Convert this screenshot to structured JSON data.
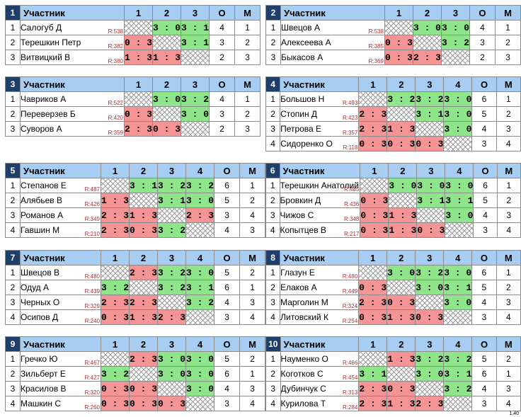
{
  "header": {
    "participant": "Участник",
    "o": "О",
    "m": "М"
  },
  "groups": [
    {
      "num": "1",
      "players": [
        {
          "pos": "1",
          "name": "Салогуб Д",
          "rating": "R:538",
          "scores": [
            "",
            "3 : 0",
            "3 : 1"
          ],
          "o": "4",
          "m": "1"
        },
        {
          "pos": "2",
          "name": "Терешкин Петр",
          "rating": "R:382",
          "scores": [
            "0 : 3",
            "",
            "3 : 1"
          ],
          "o": "3",
          "m": "2"
        },
        {
          "pos": "3",
          "name": "Витвицкий В",
          "rating": "R:380",
          "scores": [
            "1 : 3",
            "1 : 3",
            ""
          ],
          "o": "2",
          "m": "3"
        }
      ]
    },
    {
      "num": "2",
      "players": [
        {
          "pos": "1",
          "name": "Швецов А",
          "rating": "R:538",
          "scores": [
            "",
            "3 : 0",
            "3 : 0"
          ],
          "o": "4",
          "m": "1"
        },
        {
          "pos": "2",
          "name": "Алексеева А",
          "rating": "R:385",
          "scores": [
            "0 : 3",
            "",
            "3 : 2"
          ],
          "o": "3",
          "m": "2"
        },
        {
          "pos": "3",
          "name": "Быкасов А",
          "rating": "R:369",
          "scores": [
            "0 : 3",
            "2 : 3",
            ""
          ],
          "o": "2",
          "m": "3"
        }
      ]
    },
    {
      "num": "3",
      "players": [
        {
          "pos": "1",
          "name": "Чавриков А",
          "rating": "R:522",
          "scores": [
            "",
            "3 : 0",
            "3 : 2"
          ],
          "o": "4",
          "m": "1"
        },
        {
          "pos": "2",
          "name": "Переверзев Б",
          "rating": "R:420",
          "scores": [
            "0 : 3",
            "",
            "3 : 0"
          ],
          "o": "3",
          "m": "2"
        },
        {
          "pos": "3",
          "name": "Суворов А",
          "rating": "R:359",
          "scores": [
            "2 : 3",
            "0 : 3",
            ""
          ],
          "o": "2",
          "m": "3"
        }
      ]
    },
    {
      "num": "4",
      "players": [
        {
          "pos": "1",
          "name": "Большов Н",
          "rating": "R:493",
          "scores": [
            "",
            "3 : 2",
            "3 : 2",
            "3 : 0"
          ],
          "o": "6",
          "m": "1"
        },
        {
          "pos": "2",
          "name": "Стопин Д",
          "rating": "R:423",
          "scores": [
            "2 : 3",
            "",
            "3 : 1",
            "3 : 0"
          ],
          "o": "5",
          "m": "2"
        },
        {
          "pos": "3",
          "name": "Петрова Е",
          "rating": "R:357",
          "scores": [
            "2 : 3",
            "1 : 3",
            "",
            "3 : 0"
          ],
          "o": "4",
          "m": "3"
        },
        {
          "pos": "4",
          "name": "Сидоренко О",
          "rating": "R:118",
          "scores": [
            "0 : 3",
            "0 : 3",
            "0 : 3",
            ""
          ],
          "o": "3",
          "m": "4"
        }
      ]
    },
    {
      "num": "5",
      "players": [
        {
          "pos": "1",
          "name": "Степанов Е",
          "rating": "R:487",
          "scores": [
            "",
            "3 : 1",
            "3 : 2",
            "3 : 2"
          ],
          "o": "6",
          "m": "1"
        },
        {
          "pos": "2",
          "name": "Алябьев В",
          "rating": "R:426",
          "scores": [
            "1 : 3",
            "",
            "3 : 1",
            "3 : 0"
          ],
          "o": "5",
          "m": "2"
        },
        {
          "pos": "3",
          "name": "Романов А",
          "rating": "R:349",
          "scores": [
            "2 : 3",
            "1 : 3",
            "",
            "2 : 3"
          ],
          "o": "3",
          "m": "4"
        },
        {
          "pos": "4",
          "name": "Гавшин М",
          "rating": "R:210",
          "scores": [
            "2 : 3",
            "0 : 3",
            "3 : 2",
            ""
          ],
          "o": "4",
          "m": "3"
        }
      ]
    },
    {
      "num": "6",
      "players": [
        {
          "pos": "1",
          "name": "Терешкин Анатолий",
          "rating": "R:485",
          "scores": [
            "",
            "3 : 0",
            "3 : 0",
            "3 : 0"
          ],
          "o": "6",
          "m": "1"
        },
        {
          "pos": "2",
          "name": "Бровкин Д",
          "rating": "R:436",
          "scores": [
            "0 : 3",
            "",
            "3 : 1",
            "3 : 1"
          ],
          "o": "5",
          "m": "2"
        },
        {
          "pos": "3",
          "name": "Чижов С",
          "rating": "R:348",
          "scores": [
            "0 : 3",
            "1 : 3",
            "",
            "3 : 0"
          ],
          "o": "4",
          "m": "3"
        },
        {
          "pos": "4",
          "name": "Копытцев В",
          "rating": "R:217",
          "scores": [
            "0 : 3",
            "1 : 3",
            "0 : 3",
            ""
          ],
          "o": "3",
          "m": "4"
        }
      ]
    },
    {
      "num": "7",
      "players": [
        {
          "pos": "1",
          "name": "Швецов В",
          "rating": "R:480",
          "scores": [
            "",
            "2 : 3",
            "3 : 2",
            "3 : 0"
          ],
          "o": "5",
          "m": "2"
        },
        {
          "pos": "2",
          "name": "Одуд А",
          "rating": "R:439",
          "scores": [
            "3 : 2",
            "",
            "3 : 2",
            "3 : 1"
          ],
          "o": "6",
          "m": "1"
        },
        {
          "pos": "3",
          "name": "Черных О",
          "rating": "R:329",
          "scores": [
            "2 : 3",
            "2 : 3",
            "",
            "3 : 2"
          ],
          "o": "4",
          "m": "3"
        },
        {
          "pos": "4",
          "name": "Осипов Д",
          "rating": "R:240",
          "scores": [
            "0 : 3",
            "1 : 3",
            "2 : 3",
            ""
          ],
          "o": "3",
          "m": "4"
        }
      ]
    },
    {
      "num": "8",
      "players": [
        {
          "pos": "1",
          "name": "Глазун Е",
          "rating": "R:480",
          "scores": [
            "",
            "3 : 0",
            "3 : 2",
            "3 : 0"
          ],
          "o": "6",
          "m": "1"
        },
        {
          "pos": "2",
          "name": "Елаков А",
          "rating": "R:449",
          "scores": [
            "0 : 3",
            "",
            "3 : 0",
            "3 : 1"
          ],
          "o": "5",
          "m": "2"
        },
        {
          "pos": "3",
          "name": "Марголин М",
          "rating": "R:324",
          "scores": [
            "2 : 3",
            "0 : 3",
            "",
            "3 : 0"
          ],
          "o": "4",
          "m": "3"
        },
        {
          "pos": "4",
          "name": "Литовский К",
          "rating": "R:254",
          "scores": [
            "0 : 3",
            "1 : 3",
            "0 : 3",
            ""
          ],
          "o": "3",
          "m": "4"
        }
      ]
    },
    {
      "num": "9",
      "players": [
        {
          "pos": "1",
          "name": "Гречко Ю",
          "rating": "R:467",
          "scores": [
            "",
            "2 : 3",
            "3 : 0",
            "3 : 0"
          ],
          "o": "5",
          "m": "2"
        },
        {
          "pos": "2",
          "name": "Зильберт Е",
          "rating": "R:427",
          "scores": [
            "3 : 2",
            "",
            "3 : 0",
            "3 : 0"
          ],
          "o": "6",
          "m": "1"
        },
        {
          "pos": "3",
          "name": "Красилов В",
          "rating": "R:320",
          "scores": [
            "0 : 3",
            "0 : 3",
            "",
            "3 : 0"
          ],
          "o": "4",
          "m": "3"
        },
        {
          "pos": "4",
          "name": "Машкин С",
          "rating": "R:260",
          "scores": [
            "0 : 3",
            "0 : 3",
            "0 : 3",
            ""
          ],
          "o": "3",
          "m": "4"
        }
      ]
    },
    {
      "num": "10",
      "players": [
        {
          "pos": "1",
          "name": "Науменко О",
          "rating": "R:466",
          "scores": [
            "",
            "1 : 3",
            "3 : 2",
            "3 : 2"
          ],
          "o": "5",
          "m": "2"
        },
        {
          "pos": "2",
          "name": "Коготков С",
          "rating": "R:454",
          "scores": [
            "3 : 1",
            "",
            "3 : 0",
            "3 : 1"
          ],
          "o": "6",
          "m": "1"
        },
        {
          "pos": "3",
          "name": "Дубинчук С",
          "rating": "R:313",
          "scores": [
            "2 : 3",
            "0 : 3",
            "",
            "3 : 2"
          ],
          "o": "4",
          "m": "3"
        },
        {
          "pos": "4",
          "name": "Курилова Т",
          "rating": "R:284",
          "scores": [
            "2 : 3",
            "1 : 3",
            "2 : 3",
            ""
          ],
          "o": "3",
          "m": "4"
        }
      ]
    }
  ],
  "version": "1.40"
}
